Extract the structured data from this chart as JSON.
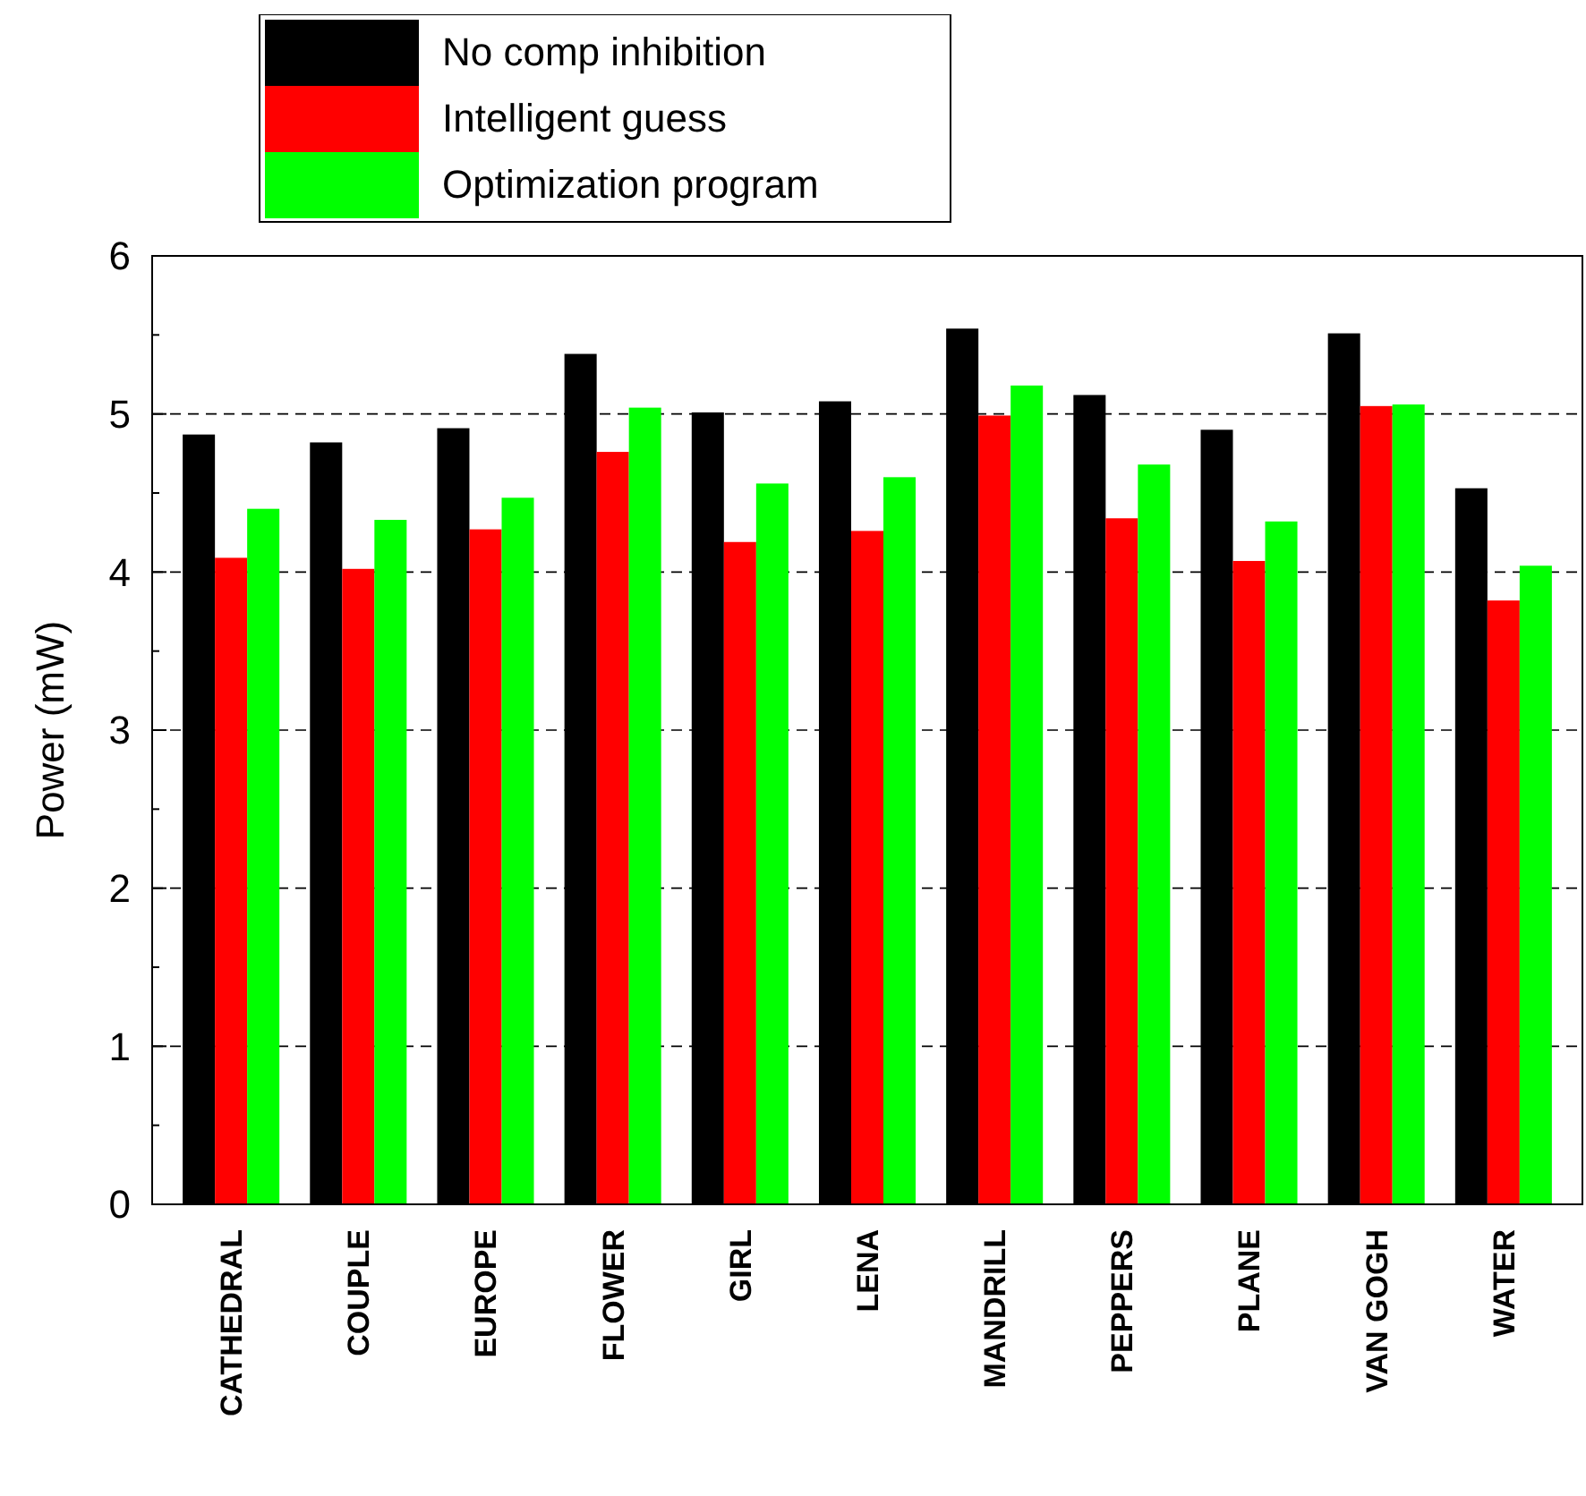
{
  "chart_data": {
    "type": "bar",
    "ylabel": "Power (mW)",
    "categories": [
      "CATHEDRAL",
      "COUPLE",
      "EUROPE",
      "FLOWER",
      "GIRL",
      "LENA",
      "MANDRILL",
      "PEPPERS",
      "PLANE",
      "VAN GOGH",
      "WATER"
    ],
    "series": [
      {
        "name": "No comp inhibition",
        "color": "#000000",
        "values": [
          4.87,
          4.82,
          4.91,
          5.38,
          5.01,
          5.08,
          5.54,
          5.12,
          4.9,
          5.51,
          4.53
        ]
      },
      {
        "name": "Intelligent guess",
        "color": "#ff0000",
        "values": [
          4.09,
          4.02,
          4.27,
          4.76,
          4.19,
          4.26,
          4.99,
          4.34,
          4.07,
          5.05,
          3.82
        ]
      },
      {
        "name": "Optimization program",
        "color": "#00ff00",
        "values": [
          4.4,
          4.33,
          4.47,
          5.04,
          4.56,
          4.6,
          5.18,
          4.68,
          4.32,
          5.06,
          4.04
        ]
      }
    ],
    "ylim": [
      0,
      6
    ],
    "yticks": [
      0,
      1,
      2,
      3,
      4,
      5,
      6
    ],
    "grid": "y",
    "legend": "top left"
  }
}
